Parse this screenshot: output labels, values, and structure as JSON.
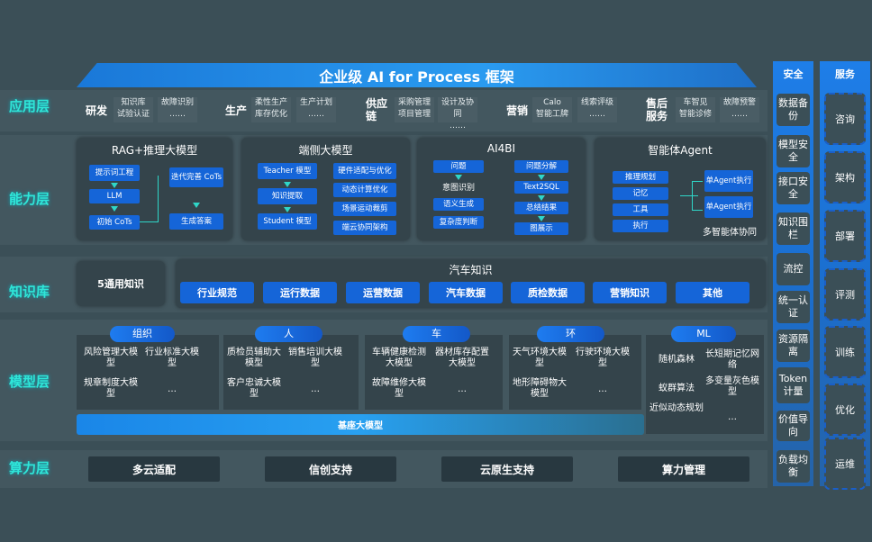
{
  "title": "企业级 AI for Process 框架",
  "layers": {
    "app": "应用层",
    "capability": "能力层",
    "knowledge": "知识库",
    "model": "模型层",
    "compute": "算力层"
  },
  "app": [
    {
      "name": "研发",
      "items": [
        "知识库",
        "试验认证",
        "故障识别",
        "……"
      ]
    },
    {
      "name": "生产",
      "items": [
        "柔性生产",
        "库存优化",
        "生产计划",
        "……"
      ]
    },
    {
      "name": "供应链",
      "items": [
        "采购管理",
        "项目管理",
        "设计及协同",
        "……"
      ]
    },
    {
      "name": "营销",
      "items": [
        "Calo",
        "智能工牌",
        "线索评级",
        "……"
      ]
    },
    {
      "name": "售后服务",
      "items": [
        "车智见",
        "智能诊修",
        "故障预警",
        "……"
      ]
    }
  ],
  "capability": {
    "rag": {
      "title": "RAG+推理大模型",
      "items": [
        "提示词工程",
        "LLM",
        "初始 CoTs",
        "迭代完善 CoTs",
        "生成答案"
      ]
    },
    "edge": {
      "title": "端侧大模型",
      "items": [
        "Teacher 模型",
        "知识提取",
        "Student 模型",
        "硬件适配与优化",
        "动态计算优化",
        "场景运动裁剪",
        "端云协同架构"
      ]
    },
    "ai4bi": {
      "title": "AI4BI",
      "items": [
        "问题",
        "意图识别",
        "语义生成",
        "复杂度判断",
        "问题分解",
        "Text2SQL",
        "总结结果",
        "图展示"
      ]
    },
    "agent": {
      "title": "智能体Agent",
      "items": [
        "推理规划",
        "记忆",
        "工具",
        "执行",
        "单Agent执行",
        "单Agent执行"
      ],
      "footer": "多智能体协同"
    }
  },
  "knowledge": {
    "general": "5通用知识",
    "auto_title": "汽车知识",
    "items": [
      "行业规范",
      "运行数据",
      "运营数据",
      "汽车数据",
      "质检数据",
      "营销知识",
      "其他"
    ]
  },
  "model": {
    "groups": [
      {
        "name": "组织",
        "items": [
          "风险管理大模型",
          "行业标准大模型",
          "规章制度大模型",
          "…"
        ]
      },
      {
        "name": "人",
        "items": [
          "质检员辅助大模型",
          "销售培训大模型",
          "客户忠诚大模型",
          "…"
        ]
      },
      {
        "name": "车",
        "items": [
          "车辆健康检测大模型",
          "器材库存配置大模型",
          "故障维修大模型",
          "…"
        ]
      },
      {
        "name": "环",
        "items": [
          "天气环境大模型",
          "行驶环境大模型",
          "地形障碍物大模型",
          "…"
        ]
      },
      {
        "name": "ML",
        "items": [
          "随机森林",
          "长短期记忆网络",
          "蚁群算法",
          "多变量灰色模型",
          "近似动态规划",
          "…"
        ]
      }
    ],
    "base": "基座大模型"
  },
  "compute": [
    "多云适配",
    "信创支持",
    "云原生支持",
    "算力管理"
  ],
  "security": {
    "title": "安全",
    "items": [
      "数据备份",
      "模型安全",
      "接口安全",
      "知识围栏",
      "流控",
      "统一认证",
      "资源隔离",
      "Token计量",
      "价值导向",
      "负载均衡"
    ]
  },
  "service": {
    "title": "服务",
    "items": [
      "咨询",
      "架构",
      "部署",
      "评测",
      "训练",
      "优化",
      "运维"
    ]
  },
  "colors": {
    "background": "#3b4f57",
    "accent_blue": "#1565d8",
    "layer_label": "#2fe6d8"
  }
}
